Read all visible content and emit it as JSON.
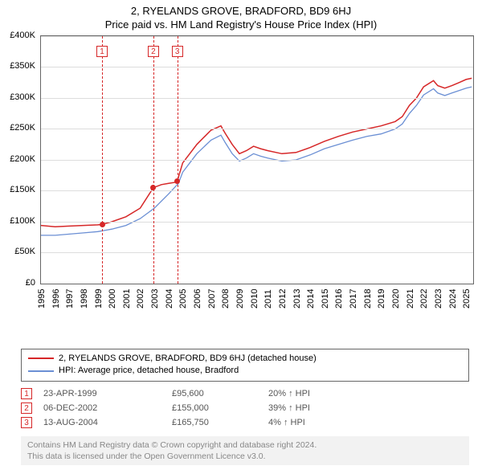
{
  "title": "2, RYELANDS GROVE, BRADFORD, BD9 6HJ",
  "subtitle": "Price paid vs. HM Land Registry's House Price Index (HPI)",
  "chart": {
    "type": "line",
    "background_color": "#ffffff",
    "axis_color": "#666666",
    "grid_color": "#dddddd",
    "text_color": "#000000",
    "label_fontsize": 11,
    "x": {
      "min": 1995,
      "max": 2025.5,
      "ticks": [
        1995,
        1996,
        1997,
        1998,
        1999,
        2000,
        2001,
        2002,
        2003,
        2004,
        2005,
        2006,
        2007,
        2008,
        2009,
        2010,
        2011,
        2012,
        2013,
        2014,
        2015,
        2016,
        2017,
        2018,
        2019,
        2020,
        2021,
        2022,
        2023,
        2024,
        2025
      ]
    },
    "y": {
      "min": 0,
      "max": 400000,
      "ticks": [
        0,
        50000,
        100000,
        150000,
        200000,
        250000,
        300000,
        350000,
        400000
      ],
      "labels": [
        "£0",
        "£50K",
        "£100K",
        "£150K",
        "£200K",
        "£250K",
        "£300K",
        "£350K",
        "£400K"
      ]
    },
    "series": [
      {
        "name": "2, RYELANDS GROVE, BRADFORD, BD9 6HJ (detached house)",
        "color": "#d62728",
        "width": 1.5,
        "points": [
          [
            1995,
            94000
          ],
          [
            1996,
            92000
          ],
          [
            1997,
            93000
          ],
          [
            1998,
            94000
          ],
          [
            1999,
            95000
          ],
          [
            1999.3,
            95600
          ],
          [
            2000,
            100000
          ],
          [
            2001,
            108000
          ],
          [
            2002,
            122000
          ],
          [
            2002.93,
            155000
          ],
          [
            2003.5,
            160000
          ],
          [
            2004,
            162000
          ],
          [
            2004.55,
            164000
          ],
          [
            2004.62,
            165750
          ],
          [
            2005,
            195000
          ],
          [
            2005.5,
            210000
          ],
          [
            2006,
            225000
          ],
          [
            2007,
            248000
          ],
          [
            2007.7,
            255000
          ],
          [
            2008,
            243000
          ],
          [
            2008.5,
            225000
          ],
          [
            2009,
            210000
          ],
          [
            2009.5,
            215000
          ],
          [
            2010,
            222000
          ],
          [
            2010.5,
            218000
          ],
          [
            2011,
            215000
          ],
          [
            2012,
            210000
          ],
          [
            2013,
            212000
          ],
          [
            2014,
            220000
          ],
          [
            2015,
            230000
          ],
          [
            2016,
            238000
          ],
          [
            2017,
            245000
          ],
          [
            2018,
            250000
          ],
          [
            2019,
            255000
          ],
          [
            2020,
            262000
          ],
          [
            2020.5,
            270000
          ],
          [
            2021,
            288000
          ],
          [
            2021.5,
            300000
          ],
          [
            2022,
            318000
          ],
          [
            2022.7,
            328000
          ],
          [
            2023,
            320000
          ],
          [
            2023.5,
            316000
          ],
          [
            2024,
            320000
          ],
          [
            2024.5,
            325000
          ],
          [
            2025,
            330000
          ],
          [
            2025.4,
            332000
          ]
        ]
      },
      {
        "name": "HPI: Average price, detached house, Bradford",
        "color": "#6b8fd4",
        "width": 1.3,
        "points": [
          [
            1995,
            78000
          ],
          [
            1996,
            78000
          ],
          [
            1997,
            80000
          ],
          [
            1998,
            82000
          ],
          [
            1999,
            84000
          ],
          [
            2000,
            88000
          ],
          [
            2001,
            94000
          ],
          [
            2002,
            105000
          ],
          [
            2003,
            122000
          ],
          [
            2004,
            145000
          ],
          [
            2004.7,
            162000
          ],
          [
            2005,
            180000
          ],
          [
            2005.5,
            195000
          ],
          [
            2006,
            210000
          ],
          [
            2007,
            232000
          ],
          [
            2007.7,
            240000
          ],
          [
            2008,
            228000
          ],
          [
            2008.5,
            210000
          ],
          [
            2009,
            198000
          ],
          [
            2009.5,
            203000
          ],
          [
            2010,
            210000
          ],
          [
            2010.5,
            206000
          ],
          [
            2011,
            203000
          ],
          [
            2012,
            198000
          ],
          [
            2013,
            200000
          ],
          [
            2014,
            208000
          ],
          [
            2015,
            218000
          ],
          [
            2016,
            225000
          ],
          [
            2017,
            232000
          ],
          [
            2018,
            238000
          ],
          [
            2019,
            242000
          ],
          [
            2020,
            250000
          ],
          [
            2020.5,
            258000
          ],
          [
            2021,
            275000
          ],
          [
            2021.5,
            288000
          ],
          [
            2022,
            305000
          ],
          [
            2022.7,
            315000
          ],
          [
            2023,
            308000
          ],
          [
            2023.5,
            304000
          ],
          [
            2024,
            308000
          ],
          [
            2024.5,
            312000
          ],
          [
            2025,
            316000
          ],
          [
            2025.4,
            318000
          ]
        ]
      }
    ],
    "markers": [
      {
        "n": "1",
        "x": 1999.31,
        "y": 95600
      },
      {
        "n": "2",
        "x": 2002.93,
        "y": 155000
      },
      {
        "n": "3",
        "x": 2004.62,
        "y": 165750
      }
    ],
    "marker_style": {
      "line_color": "#d62728",
      "box_border": "#d62728",
      "box_text": "#d62728",
      "dot_color": "#d62728"
    }
  },
  "legend": [
    {
      "color": "#d62728",
      "label": "2, RYELANDS GROVE, BRADFORD, BD9 6HJ (detached house)"
    },
    {
      "color": "#6b8fd4",
      "label": "HPI: Average price, detached house, Bradford"
    }
  ],
  "sales": [
    {
      "n": "1",
      "date": "23-APR-1999",
      "price": "£95,600",
      "delta": "20% ↑ HPI"
    },
    {
      "n": "2",
      "date": "06-DEC-2002",
      "price": "£155,000",
      "delta": "39% ↑ HPI"
    },
    {
      "n": "3",
      "date": "13-AUG-2004",
      "price": "£165,750",
      "delta": "4% ↑ HPI"
    }
  ],
  "attribution": {
    "line1": "Contains HM Land Registry data © Crown copyright and database right 2024.",
    "line2": "This data is licensed under the Open Government Licence v3.0."
  }
}
